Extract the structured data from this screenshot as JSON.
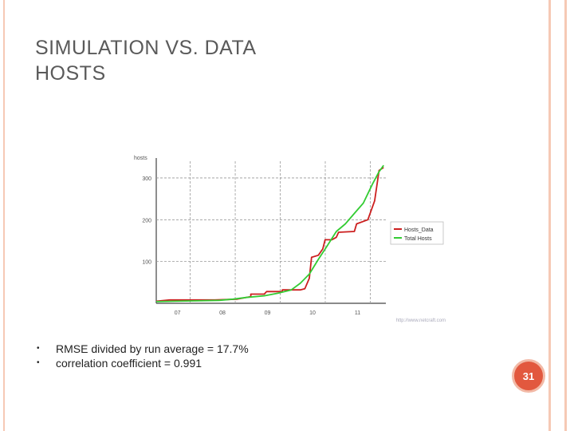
{
  "slide": {
    "title_line1": "SIMULATION VS. DATA",
    "title_line2": "HOSTS",
    "bullets": [
      "RMSE divided by run average = 17.7%",
      "correlation coefficient = 0.991"
    ],
    "page_number": "31"
  },
  "colors": {
    "accent": "#e2583e",
    "stripe": "#f6c9b5",
    "data_series": "#cc1f1f",
    "sim_series": "#33cc33"
  },
  "chart_data": {
    "type": "line",
    "title": "",
    "ylabel": "hosts",
    "xlabel": "",
    "x_tick_labels": [
      "07",
      "08",
      "09",
      "10",
      "11"
    ],
    "y_tick_labels": [
      "100",
      "200",
      "300"
    ],
    "y_ticks": [
      100,
      200,
      300
    ],
    "x_ticks": [
      7,
      8,
      9,
      10,
      11
    ],
    "xlim": [
      6.6,
      11.7
    ],
    "ylim": [
      0,
      340
    ],
    "grid": true,
    "legend_position": "right",
    "source_text": "http://www.netcraft.com",
    "series": [
      {
        "name": "Hosts_Data",
        "x": [
          6.6,
          6.9,
          7.9,
          8.4,
          8.7,
          8.7,
          9.0,
          9.05,
          9.4,
          9.4,
          9.8,
          9.9,
          10.0,
          10.05,
          10.2,
          10.3,
          10.35,
          10.5,
          10.6,
          10.65,
          11.0,
          11.05,
          11.3,
          11.45,
          11.55,
          11.65
        ],
        "y": [
          5,
          8,
          8,
          10,
          16,
          22,
          22,
          28,
          28,
          32,
          32,
          35,
          60,
          110,
          115,
          130,
          152,
          152,
          158,
          170,
          172,
          190,
          200,
          245,
          318,
          325
        ]
      },
      {
        "name": "Total Hosts",
        "x": [
          6.6,
          7.0,
          7.5,
          8.0,
          8.3,
          8.6,
          9.0,
          9.3,
          9.6,
          9.8,
          10.0,
          10.2,
          10.4,
          10.6,
          10.8,
          11.0,
          11.2,
          11.4,
          11.55,
          11.65
        ],
        "y": [
          4,
          5,
          6,
          7,
          10,
          14,
          18,
          24,
          32,
          48,
          70,
          105,
          138,
          172,
          190,
          215,
          240,
          285,
          315,
          330
        ]
      }
    ]
  }
}
